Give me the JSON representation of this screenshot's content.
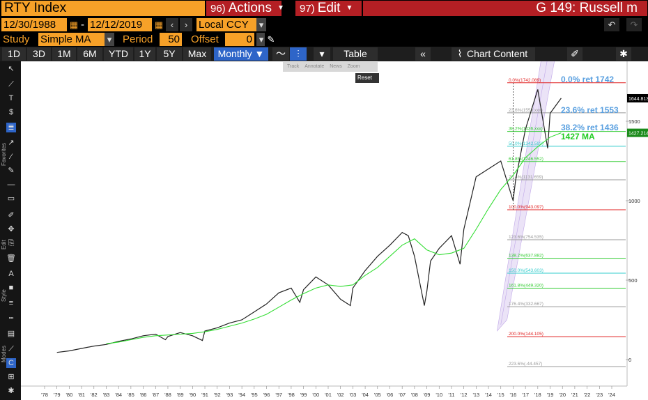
{
  "header": {
    "ticker": "RTY Index",
    "actions_num": "96)",
    "actions_label": "Actions",
    "edit_num": "97)",
    "edit_label": "Edit",
    "title": "G 149: Russell m"
  },
  "dates": {
    "start": "12/30/1988",
    "sep": "-",
    "end": "12/12/2019",
    "currency": "Local CCY"
  },
  "study": {
    "label": "Study",
    "value": "Simple MA",
    "period_label": "Period",
    "period_value": "50",
    "offset_label": "Offset",
    "offset_value": "0"
  },
  "toolbar": {
    "ranges": [
      "1D",
      "3D",
      "1M",
      "6M",
      "YTD",
      "1Y",
      "5Y",
      "Max"
    ],
    "frequency": "Monthly ▼",
    "table": "Table",
    "chart_content": "Chart Content"
  },
  "popup": {
    "items": [
      "Track",
      "Annotate",
      "News",
      "Zoom"
    ],
    "reset": "Reset"
  },
  "sidebar": {
    "favorites": "Favorites",
    "edit": "Edit",
    "style": "Style",
    "modes": "Modes"
  },
  "chart_data": {
    "type": "line",
    "x_ticks": [
      "'78",
      "'79",
      "'80",
      "'81",
      "'82",
      "'83",
      "'84",
      "'85",
      "'86",
      "'87",
      "'88",
      "'89",
      "'90",
      "'91",
      "'92",
      "'93",
      "'94",
      "'95",
      "'96",
      "'97",
      "'98",
      "'99",
      "'00",
      "'01",
      "'02",
      "'03",
      "'04",
      "'05",
      "'06",
      "'07",
      "'08",
      "'09",
      "'10",
      "'11",
      "'12",
      "'13",
      "'14",
      "'15",
      "'16",
      "'17",
      "'18",
      "'19",
      "'20",
      "'21",
      "'22",
      "'23",
      "'24"
    ],
    "y_ticks": [
      0,
      500,
      1000,
      1500
    ],
    "series": [
      {
        "color": "#222222",
        "x": [
          1979,
          1980,
          1981,
          1982,
          1983,
          1984,
          1985,
          1986,
          1987,
          1987.8,
          1988,
          1989,
          1990,
          1990.8,
          1991,
          1992,
          1993,
          1994,
          1995,
          1996,
          1997,
          1998,
          1998.7,
          1999,
          2000,
          2001,
          2002,
          2002.8,
          2003,
          2004,
          2005,
          2006,
          2007,
          2007.5,
          2008,
          2008.8,
          2009,
          2009.3,
          2010,
          2011,
          2011.7,
          2012,
          2013,
          2014,
          2015,
          2016,
          2016.2,
          2017,
          2018,
          2018.8,
          2019,
          2019.9
        ],
        "y": [
          45,
          55,
          70,
          85,
          95,
          115,
          130,
          150,
          160,
          125,
          145,
          170,
          150,
          120,
          180,
          200,
          230,
          250,
          300,
          350,
          420,
          450,
          360,
          440,
          520,
          470,
          380,
          340,
          450,
          560,
          650,
          720,
          800,
          780,
          650,
          340,
          430,
          620,
          700,
          780,
          600,
          820,
          1150,
          1200,
          1250,
          1000,
          1130,
          1450,
          1700,
          1330,
          1550,
          1645
        ]
      },
      {
        "color": "#33dd33",
        "x": [
          1983,
          1984,
          1985,
          1986,
          1987,
          1988,
          1989,
          1990,
          1991,
          1992,
          1993,
          1994,
          1995,
          1996,
          1997,
          1998,
          1999,
          2000,
          2001,
          2002,
          2003,
          2004,
          2005,
          2006,
          2007,
          2008,
          2009,
          2010,
          2011,
          2012,
          2013,
          2014,
          2015,
          2016,
          2017,
          2018,
          2019,
          2019.9
        ],
        "y": [
          100,
          110,
          125,
          140,
          150,
          155,
          160,
          165,
          175,
          190,
          210,
          230,
          255,
          285,
          330,
          375,
          415,
          450,
          470,
          460,
          470,
          530,
          580,
          650,
          720,
          760,
          690,
          660,
          670,
          700,
          820,
          950,
          1070,
          1160,
          1270,
          1340,
          1400,
          1427
        ]
      }
    ],
    "fibonacci": [
      {
        "label": "0.0%(1742.089)",
        "value": 1742.089,
        "color": "#e02020"
      },
      {
        "label": "23.6%(1553.xxx)",
        "value": 1553,
        "color": "#999999"
      },
      {
        "label": "38.2%(1436.xxx)",
        "value": 1436,
        "color": "#33cc33"
      },
      {
        "label": "50.0%(1342.593)",
        "value": 1342.593,
        "color": "#33cccc"
      },
      {
        "label": "61.8%(1246.552)",
        "value": 1246.552,
        "color": "#33cc33"
      },
      {
        "label": "76.4%(1131.659)",
        "value": 1131.659,
        "color": "#999999"
      },
      {
        "label": "100.0%(943.097)",
        "value": 943.097,
        "color": "#e02020"
      },
      {
        "label": "123.6%(754.535)",
        "value": 754.535,
        "color": "#999999"
      },
      {
        "label": "138.2%(637.882)",
        "value": 637.882,
        "color": "#33cc33"
      },
      {
        "label": "150.0%(543.603)",
        "value": 543.603,
        "color": "#33cccc"
      },
      {
        "label": "161.8%(449.320)",
        "value": 449.32,
        "color": "#33cc33"
      },
      {
        "label": "176.4%(332.667)",
        "value": 332.667,
        "color": "#999999"
      },
      {
        "label": "200.0%(144.105)",
        "value": 144.105,
        "color": "#e02020"
      },
      {
        "label": "223.6%(-44.457)",
        "value": -44.457,
        "color": "#999999"
      }
    ],
    "annotations": [
      {
        "text": "0.0% ret 1742",
        "color": "#5aa0e0"
      },
      {
        "text": "23.6% ret 1553",
        "color": "#5aa0e0"
      },
      {
        "text": "38.2% ret 1436",
        "color": "#5aa0e0"
      },
      {
        "text": "1427 MA",
        "color": "#22cc22"
      }
    ],
    "price_labels": [
      {
        "text": "1644.813",
        "value": 1644.813
      },
      {
        "text": "1427.214",
        "value": 1427.214
      }
    ]
  }
}
